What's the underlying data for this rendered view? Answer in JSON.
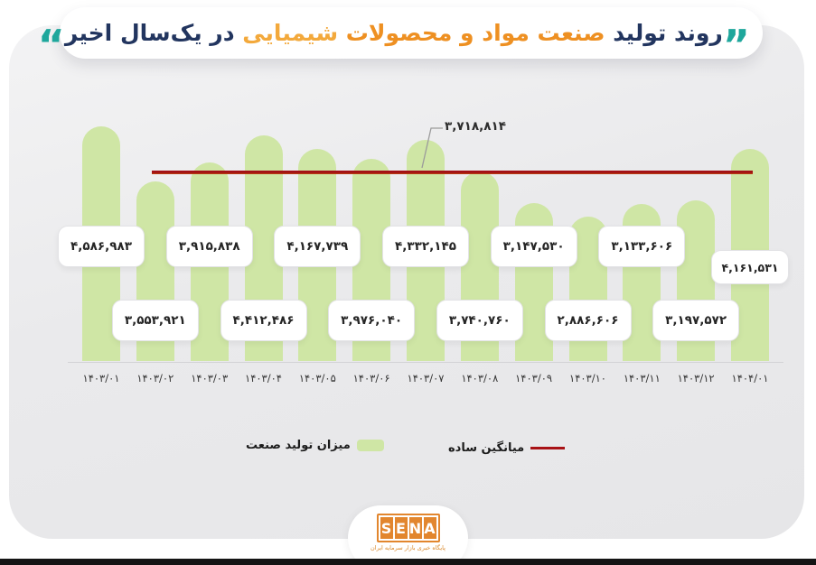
{
  "title": {
    "quote_right": "”",
    "quote_left": "“",
    "part1": "روند تولید",
    "part2": "صنعت مواد و محصولات",
    "part3": "شیمیایی",
    "part4": "در یک‌سال اخیر"
  },
  "colors": {
    "navy": "#22355f",
    "orange": "#ee9022",
    "orange_light": "#f3a93c",
    "teal": "#1ea79c",
    "bar_green": "#cfe6a5",
    "avg_red": "#a81216"
  },
  "chart_data": {
    "type": "bar",
    "title": "روند تولید صنعت مواد و محصولات شیمیایی در یک‌سال اخیر",
    "categories": [
      "1403/01",
      "1403/02",
      "1403/03",
      "1403/04",
      "1403/05",
      "1403/06",
      "1403/07",
      "1403/08",
      "1403/09",
      "1403/10",
      "1403/11",
      "1403/12",
      "1404/01"
    ],
    "categories_fa": [
      "۱۴۰۳/۰۱",
      "۱۴۰۳/۰۲",
      "۱۴۰۳/۰۳",
      "۱۴۰۳/۰۴",
      "۱۴۰۳/۰۵",
      "۱۴۰۳/۰۶",
      "۱۴۰۳/۰۷",
      "۱۴۰۳/۰۸",
      "۱۴۰۳/۰۹",
      "۱۴۰۳/۱۰",
      "۱۴۰۳/۱۱",
      "۱۴۰۳/۱۲",
      "۱۴۰۴/۰۱"
    ],
    "values": [
      4586983,
      3553921,
      3915838,
      4412486,
      4167739,
      3976040,
      4332145,
      3740760,
      3147530,
      2886606,
      3133606,
      3197572,
      4161531
    ],
    "values_fa": [
      "۴,۵۸۶,۹۸۳",
      "۳,۵۵۳,۹۲۱",
      "۳,۹۱۵,۸۳۸",
      "۴,۴۱۲,۴۸۶",
      "۴,۱۶۷,۷۳۹",
      "۳,۹۷۶,۰۴۰",
      "۴,۳۳۲,۱۴۵",
      "۳,۷۴۰,۷۶۰",
      "۳,۱۴۷,۵۳۰",
      "۲,۸۸۶,۶۰۶",
      "۳,۱۳۳,۶۰۶",
      "۳,۱۹۷,۵۷۲",
      "۴,۱۶۱,۵۳۱"
    ],
    "average": {
      "value": 3718814,
      "label_fa": "۳,۷۱۸,۸۱۴"
    },
    "bar_color": "#cfe6a5",
    "average_line_color": "#a81216",
    "ylim": [
      0,
      4800000
    ],
    "grid": false,
    "legend_position": "bottom-center"
  },
  "legend": [
    {
      "label": "میزان تولید صنعت",
      "marker": "bar-swatch",
      "color": "#cfe6a5"
    },
    {
      "label": "میانگین ساده",
      "marker": "line",
      "color": "#a81216"
    }
  ],
  "footer": {
    "logo_letters": [
      "S",
      "E",
      "N",
      "A"
    ],
    "tagline": "پایگاه خبری بازار سرمایه ایران"
  }
}
